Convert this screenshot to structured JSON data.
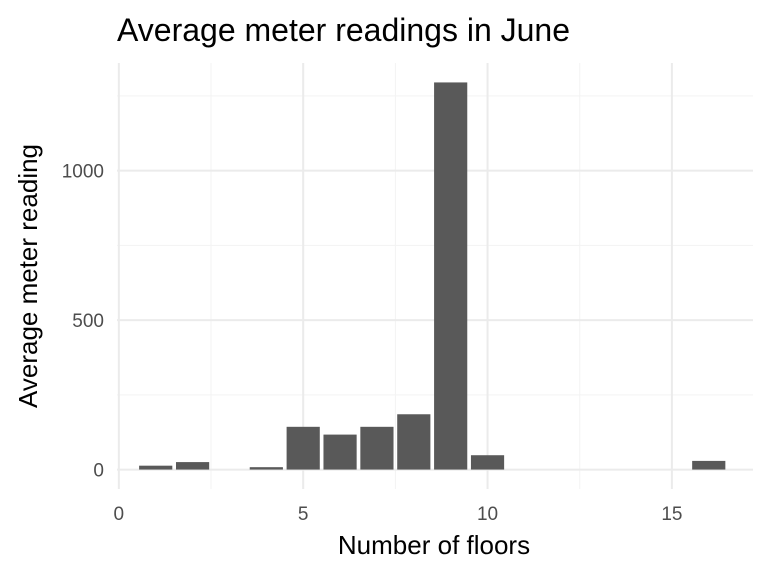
{
  "chart_data": {
    "type": "bar",
    "title": "Average meter readings in June",
    "xlabel": "Number of floors",
    "ylabel": "Average meter reading",
    "x": [
      1,
      2,
      4,
      5,
      6,
      7,
      8,
      9,
      10,
      16
    ],
    "values": [
      13,
      25,
      8,
      143,
      117,
      143,
      185,
      1295,
      48,
      29
    ],
    "xlim": [
      -0.05,
      17.2
    ],
    "ylim": [
      -65,
      1360
    ],
    "xticks": [
      0,
      5,
      10,
      15
    ],
    "yticks": [
      0,
      500,
      1000
    ],
    "xtick_labels": [
      "0",
      "5",
      "10",
      "15"
    ],
    "ytick_labels": [
      "0",
      "500",
      "1000"
    ],
    "grid": true,
    "bar_color": "#595959"
  }
}
